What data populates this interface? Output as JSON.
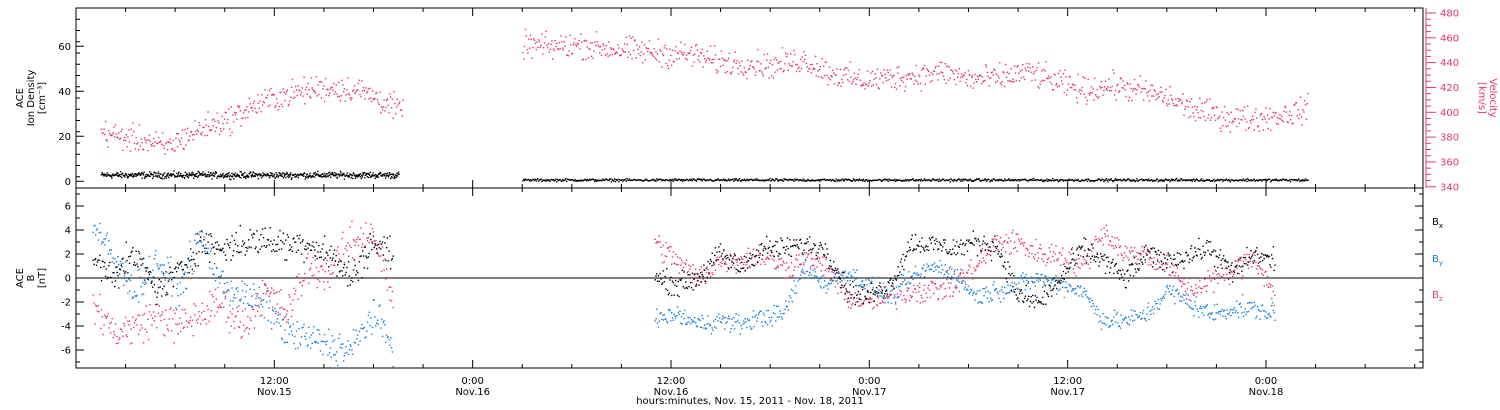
{
  "colors": {
    "black": "#000000",
    "pink": "#e8336a",
    "blue": "#1a7fd9"
  },
  "xlabel": "hours:minutes, Nov. 15, 2011 - Nov. 18, 2011",
  "x_ticks": [
    {
      "time": "12:00",
      "date": "Nov.15",
      "hour": 12
    },
    {
      "time": "0:00",
      "date": "Nov.16",
      "hour": 24
    },
    {
      "time": "12:00",
      "date": "Nov.16",
      "hour": 36
    },
    {
      "time": "0:00",
      "date": "Nov.17",
      "hour": 48
    },
    {
      "time": "12:00",
      "date": "Nov.17",
      "hour": 60
    },
    {
      "time": "0:00",
      "date": "Nov.18",
      "hour": 72
    }
  ],
  "chart_data": [
    {
      "type": "scatter",
      "panel": "top",
      "ylabel": [
        "ACE",
        "Ion Density",
        "[cm⁻³]"
      ],
      "ylim": [
        -3,
        77
      ],
      "yticks": [
        0,
        20,
        40,
        60
      ],
      "right_ylabel": [
        "ACE",
        "Velocity",
        "[km/s]"
      ],
      "right_ylim": [
        339,
        484
      ],
      "right_yticks": [
        340,
        360,
        380,
        400,
        420,
        440,
        460,
        480
      ],
      "xlim_hours": [
        0,
        81.5
      ],
      "series": [
        {
          "name": "Ion Density",
          "axis": "left",
          "color": "black",
          "segments": [
            {
              "from": 1.5,
              "to": 19.5,
              "level": 3,
              "jitter": 1.2,
              "step": 0.03
            },
            {
              "from": 27.0,
              "to": 74.5,
              "level": 0.8,
              "jitter": 0.5,
              "step": 0.05
            }
          ]
        },
        {
          "name": "Velocity",
          "axis": "right",
          "color": "pink",
          "segments": [
            {
              "from": 1.5,
              "to": 19.8,
              "values": [
                385,
                380,
                378,
                372,
                382,
                390,
                395,
                405,
                412,
                416,
                420,
                420,
                418,
                410,
                400
              ],
              "jitter": 9
            },
            {
              "from": 27.0,
              "to": 74.5,
              "values": [
                455,
                453,
                455,
                452,
                450,
                448,
                447,
                441,
                440,
                438,
                443,
                432,
                426,
                428,
                430,
                433,
                427,
                428,
                433,
                425,
                418,
                422,
                418,
                412,
                402,
                397,
                395,
                398,
                403
              ],
              "jitter": 9
            }
          ]
        }
      ]
    },
    {
      "type": "scatter",
      "panel": "bottom",
      "ylabel": [
        "ACE",
        "B",
        "[nT]"
      ],
      "ylim": [
        -7.5,
        7.5
      ],
      "yticks": [
        -6,
        -4,
        -2,
        0,
        2,
        4,
        6
      ],
      "zero_line": true,
      "legend": [
        "Bx",
        "By",
        "Bz"
      ],
      "legend_placement": "right",
      "xlim_hours": [
        0,
        81.5
      ],
      "series": [
        {
          "name": "Bx",
          "color": "black",
          "segments": [
            {
              "from": 1.0,
              "to": 19.2,
              "values": [
                1.5,
                0.5,
                1.8,
                -1,
                0.5,
                3,
                2.5,
                3,
                3.2,
                2.8,
                3,
                2,
                0,
                3,
                2
              ],
              "jitter": 1.1
            },
            {
              "from": 35.0,
              "to": 72.5,
              "values": [
                0,
                -0.5,
                0,
                2,
                1,
                2.5,
                2.5,
                2.8,
                2.5,
                -1,
                -1.5,
                -0.5,
                3,
                2.8,
                2.5,
                3,
                2.7,
                -1.5,
                -2,
                0,
                2.5,
                1.5,
                0,
                2,
                1.5,
                2,
                2.5,
                0.5,
                2,
                1.5
              ],
              "jitter": 0.8
            }
          ]
        },
        {
          "name": "By",
          "color": "blue",
          "segments": [
            {
              "from": 1.0,
              "to": 19.2,
              "values": [
                4.5,
                1.5,
                -1,
                1.5,
                -1,
                3.5,
                -0.5,
                -1.5,
                -2,
                -4.5,
                -5,
                -5.5,
                -6,
                -3,
                -5.5
              ],
              "jitter": 1.2
            },
            {
              "from": 35.0,
              "to": 72.5,
              "values": [
                -3.5,
                -3,
                -3.8,
                -3.5,
                -3.8,
                -3.2,
                -3,
                1,
                -0.5,
                0.5,
                -0.5,
                -1.5,
                0,
                1,
                0.5,
                -1.5,
                -1,
                -0.5,
                0,
                -0.5,
                -1,
                -3.5,
                -3.5,
                -3,
                -1,
                -2,
                -3,
                -2.5,
                -2.5,
                -3
              ],
              "jitter": 0.7
            }
          ]
        },
        {
          "name": "Bz",
          "color": "pink",
          "segments": [
            {
              "from": 1.0,
              "to": 19.2,
              "values": [
                -2,
                -4.5,
                -4,
                -3,
                -4,
                -3,
                -2,
                -4,
                -1,
                -3,
                1,
                0.5,
                3,
                4,
                -2
              ],
              "jitter": 1.3
            },
            {
              "from": 35.0,
              "to": 72.5,
              "values": [
                3,
                1.5,
                0,
                1.5,
                1.5,
                2,
                1,
                1.5,
                1,
                -1.5,
                -2,
                -1.5,
                -1,
                -1,
                -0.5,
                1,
                3,
                3,
                2,
                2,
                1,
                4,
                2,
                2,
                1,
                -1,
                0,
                0.5,
                2,
                -1.5
              ],
              "jitter": 0.9
            }
          ]
        }
      ]
    }
  ]
}
